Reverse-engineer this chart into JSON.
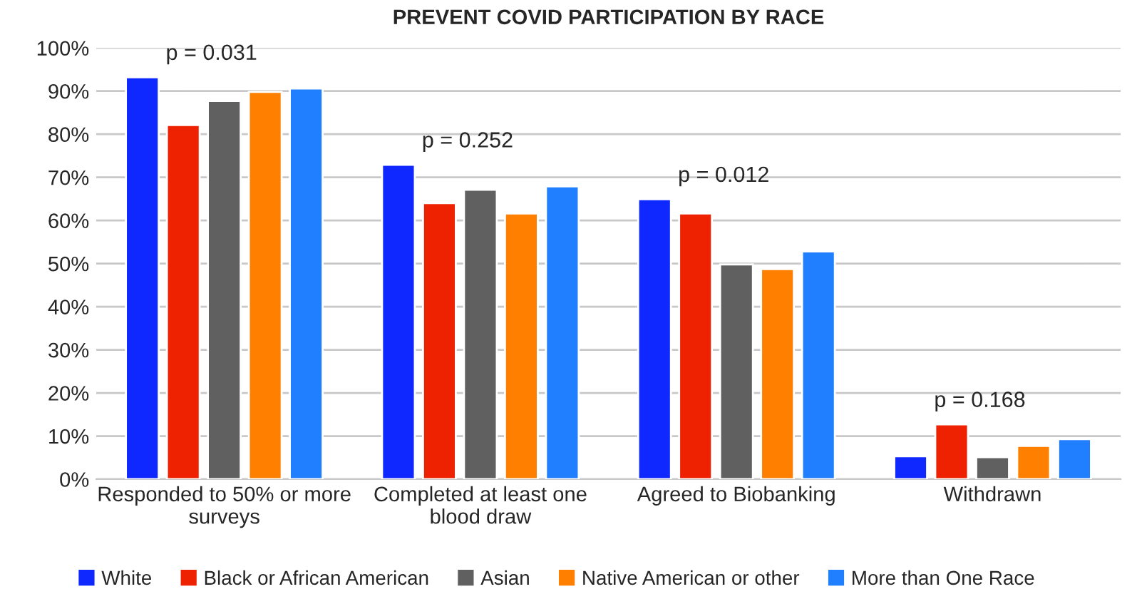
{
  "chart_data": {
    "type": "bar",
    "title": "PREVENT COVID PARTICIPATION BY RACE",
    "categories": [
      "Responded to 50% or more\nsurveys",
      "Completed at least one\nblood draw",
      "Agreed to Biobanking",
      "Withdrawn"
    ],
    "series": [
      {
        "name": "White",
        "color": "#0f28ff",
        "values": [
          93.2,
          72.9,
          64.9,
          5.3
        ]
      },
      {
        "name": "Black or African American",
        "color": "#ee2200",
        "values": [
          82.1,
          64.0,
          61.6,
          12.7
        ]
      },
      {
        "name": "Asian",
        "color": "#606060",
        "values": [
          87.7,
          67.1,
          49.8,
          5.1
        ]
      },
      {
        "name": "Native American or other",
        "color": "#ff8000",
        "values": [
          89.8,
          61.6,
          48.7,
          7.7
        ]
      },
      {
        "name": "More than One Race",
        "color": "#1f7fff",
        "values": [
          90.6,
          67.9,
          52.8,
          9.3
        ]
      }
    ],
    "ylim": [
      0,
      100
    ],
    "yticks": [
      {
        "value": 0,
        "label": "0%"
      },
      {
        "value": 10,
        "label": "10%"
      },
      {
        "value": 20,
        "label": "20%"
      },
      {
        "value": 30,
        "label": "30%"
      },
      {
        "value": 40,
        "label": "40%"
      },
      {
        "value": 50,
        "label": "50%"
      },
      {
        "value": 60,
        "label": "60%"
      },
      {
        "value": 70,
        "label": "70%"
      },
      {
        "value": 80,
        "label": "80%"
      },
      {
        "value": 90,
        "label": "90%"
      },
      {
        "value": 100,
        "label": "100%"
      }
    ],
    "grid": "y",
    "legend": "bottom",
    "annotations": [
      "p = 0.031",
      "p = 0.252",
      "p = 0.012",
      "p = 0.168"
    ]
  }
}
